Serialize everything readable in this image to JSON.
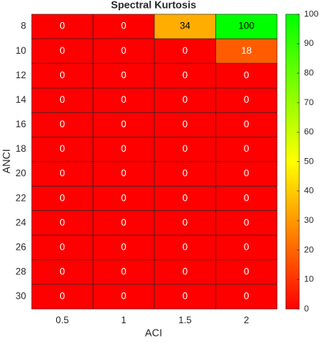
{
  "chart_data": {
    "type": "heatmap",
    "title": "Spectral Kurtosis",
    "x_label": "ACI",
    "y_label": "ANCI",
    "x": [
      0.5,
      1,
      1.5,
      2
    ],
    "y": [
      8,
      10,
      12,
      14,
      16,
      18,
      20,
      22,
      24,
      26,
      28,
      30
    ],
    "values": [
      [
        0,
        0,
        34,
        100
      ],
      [
        0,
        0,
        0,
        18
      ],
      [
        0,
        0,
        0,
        0
      ],
      [
        0,
        0,
        0,
        0
      ],
      [
        0,
        0,
        0,
        0
      ],
      [
        0,
        0,
        0,
        0
      ],
      [
        0,
        0,
        0,
        0
      ],
      [
        0,
        0,
        0,
        0
      ],
      [
        0,
        0,
        0,
        0
      ],
      [
        0,
        0,
        0,
        0
      ],
      [
        0,
        0,
        0,
        0
      ],
      [
        0,
        0,
        0,
        0
      ]
    ],
    "colormap": [
      "#ff0000",
      "#ffff00",
      "#00ff00"
    ],
    "zlim": [
      0,
      100
    ],
    "zticks": [
      0,
      10,
      20,
      30,
      40,
      50,
      60,
      70,
      80,
      90,
      100
    ]
  }
}
